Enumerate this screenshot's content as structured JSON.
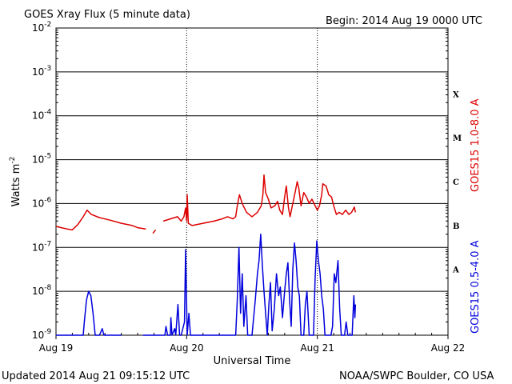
{
  "header": {
    "title": "GOES Xray Flux (5 minute data)",
    "begin": "Begin:  2014 Aug 19 0000 UTC"
  },
  "footer": {
    "updated": "Updated 2014 Aug 21 09:15:12 UTC",
    "credit": "NOAA/SWPC Boulder, CO USA"
  },
  "chart_data": {
    "type": "line",
    "title": "GOES Xray Flux (5 minute data)",
    "xlabel": "Universal Time",
    "ylabel": "Watts m",
    "ylabel_sup": "-2",
    "yscale": "log",
    "ylim": [
      1e-09,
      0.01
    ],
    "xlim_hours": [
      0,
      72
    ],
    "x_ticks": [
      {
        "hour": 0,
        "label": "Aug 19"
      },
      {
        "hour": 24,
        "label": "Aug 20"
      },
      {
        "hour": 48,
        "label": "Aug 21"
      },
      {
        "hour": 72,
        "label": "Aug 22"
      }
    ],
    "y_ticks": [
      {
        "exp": -9,
        "label": "10",
        "sup": "-9"
      },
      {
        "exp": -8,
        "label": "10",
        "sup": "-8"
      },
      {
        "exp": -7,
        "label": "10",
        "sup": "-7"
      },
      {
        "exp": -6,
        "label": "10",
        "sup": "-6"
      },
      {
        "exp": -5,
        "label": "10",
        "sup": "-5"
      },
      {
        "exp": -4,
        "label": "10",
        "sup": "-4"
      },
      {
        "exp": -3,
        "label": "10",
        "sup": "-3"
      },
      {
        "exp": -2,
        "label": "10",
        "sup": "-2"
      }
    ],
    "flare_classes": [
      {
        "label": "X",
        "exp": -3.5
      },
      {
        "label": "M",
        "exp": -4.5
      },
      {
        "label": "C",
        "exp": -5.5
      },
      {
        "label": "B",
        "exp": -6.5
      },
      {
        "label": "A",
        "exp": -7.5
      }
    ],
    "grid": true,
    "series": [
      {
        "name": "GOES15 1.0-8.0 A",
        "color": "#dd0000",
        "points": [
          [
            0,
            -6.52
          ],
          [
            1,
            -6.55
          ],
          [
            2,
            -6.58
          ],
          [
            3,
            -6.6
          ],
          [
            4,
            -6.48
          ],
          [
            5,
            -6.3
          ],
          [
            5.7,
            -6.15
          ],
          [
            6.5,
            -6.25
          ],
          [
            8,
            -6.32
          ],
          [
            10,
            -6.38
          ],
          [
            12,
            -6.45
          ],
          [
            14,
            -6.5
          ],
          [
            15,
            -6.55
          ],
          [
            16.5,
            -6.58
          ],
          null,
          [
            17.8,
            -6.68
          ],
          [
            18.3,
            -6.6
          ],
          null,
          [
            19.7,
            -6.4
          ],
          [
            21,
            -6.35
          ],
          [
            22.3,
            -6.3
          ],
          [
            23,
            -6.4
          ],
          [
            23.5,
            -6.3
          ],
          [
            23.8,
            -6.1
          ],
          [
            24,
            -6.4
          ],
          [
            24.1,
            -5.8
          ],
          [
            24.3,
            -6.45
          ],
          [
            25,
            -6.5
          ],
          [
            27,
            -6.45
          ],
          [
            29,
            -6.4
          ],
          [
            30.5,
            -6.35
          ],
          [
            31.5,
            -6.3
          ],
          [
            32.5,
            -6.35
          ],
          [
            33,
            -6.3
          ],
          [
            33.3,
            -6.05
          ],
          [
            33.7,
            -5.8
          ],
          [
            34.2,
            -6.0
          ],
          [
            35,
            -6.2
          ],
          [
            36,
            -6.3
          ],
          [
            37,
            -6.2
          ],
          [
            37.7,
            -6.05
          ],
          [
            38,
            -5.8
          ],
          [
            38.2,
            -5.35
          ],
          [
            38.5,
            -5.75
          ],
          [
            39,
            -5.9
          ],
          [
            39.5,
            -6.1
          ],
          [
            40.2,
            -6.05
          ],
          [
            40.7,
            -5.95
          ],
          [
            41.1,
            -6.15
          ],
          [
            41.6,
            -6.25
          ],
          [
            42,
            -5.85
          ],
          [
            42.3,
            -5.6
          ],
          [
            42.7,
            -6.1
          ],
          [
            43,
            -6.3
          ],
          [
            43.5,
            -6.0
          ],
          [
            44,
            -5.7
          ],
          [
            44.3,
            -5.5
          ],
          [
            44.6,
            -5.65
          ],
          [
            45,
            -6.05
          ],
          [
            45.5,
            -5.75
          ],
          [
            46,
            -5.85
          ],
          [
            46.5,
            -6.0
          ],
          [
            47,
            -5.9
          ],
          [
            47.6,
            -6.05
          ],
          [
            48,
            -6.15
          ],
          [
            48.4,
            -6.05
          ],
          [
            48.8,
            -5.8
          ],
          [
            49,
            -5.55
          ],
          [
            49.6,
            -5.6
          ],
          [
            50.1,
            -5.8
          ],
          [
            50.6,
            -5.85
          ],
          [
            51,
            -6.05
          ],
          [
            51.5,
            -6.25
          ],
          [
            52,
            -6.2
          ],
          [
            52.6,
            -6.25
          ],
          [
            53.2,
            -6.15
          ],
          [
            53.8,
            -6.25
          ],
          [
            54.3,
            -6.2
          ],
          [
            54.8,
            -6.08
          ],
          [
            55,
            -6.2
          ]
        ]
      },
      {
        "name": "GOES15 0.5-4.0 A",
        "color": "#0000dd",
        "points": [
          [
            0,
            -9.0
          ],
          [
            5,
            -9.0
          ],
          [
            5.2,
            -8.7
          ],
          [
            5.6,
            -8.2
          ],
          [
            6,
            -8.0
          ],
          [
            6.4,
            -8.1
          ],
          [
            6.8,
            -8.5
          ],
          [
            7.2,
            -9.0
          ],
          [
            8,
            -9.0
          ],
          [
            8.5,
            -8.85
          ],
          [
            8.8,
            -9.0
          ],
          [
            12,
            -9.0
          ],
          null,
          [
            16,
            -9.0
          ],
          [
            20,
            -9.0
          ],
          [
            20.2,
            -8.8
          ],
          [
            20.5,
            -9.0
          ],
          [
            21,
            -9.0
          ],
          [
            21.1,
            -8.6
          ],
          [
            21.3,
            -9.0
          ],
          [
            21.8,
            -8.85
          ],
          [
            22,
            -9.0
          ],
          [
            22.4,
            -8.3
          ],
          [
            22.7,
            -9.0
          ],
          [
            23,
            -9.0
          ],
          [
            23.6,
            -8.7
          ],
          [
            23.8,
            -7.05
          ],
          [
            24.1,
            -9.0
          ],
          [
            24.4,
            -8.5
          ],
          [
            24.7,
            -9.0
          ],
          [
            26,
            -9.0
          ],
          [
            33,
            -9.0
          ],
          [
            33.3,
            -8.2
          ],
          [
            33.6,
            -7.0
          ],
          [
            33.9,
            -8.5
          ],
          [
            34.2,
            -7.6
          ],
          [
            34.5,
            -8.8
          ],
          [
            34.9,
            -8.1
          ],
          [
            35.2,
            -9.0
          ],
          [
            36,
            -9.0
          ],
          [
            36.6,
            -8.2
          ],
          [
            37,
            -7.6
          ],
          [
            37.3,
            -7.3
          ],
          [
            37.6,
            -6.7
          ],
          [
            37.9,
            -7.4
          ],
          [
            38.2,
            -8.0
          ],
          [
            38.5,
            -8.5
          ],
          [
            38.8,
            -9.0
          ],
          [
            39.1,
            -8.3
          ],
          [
            39.4,
            -7.8
          ],
          [
            39.7,
            -8.9
          ],
          [
            40.1,
            -8.4
          ],
          [
            40.5,
            -7.6
          ],
          [
            40.9,
            -8.1
          ],
          [
            41.2,
            -7.9
          ],
          [
            41.6,
            -8.6
          ],
          [
            42,
            -8.0
          ],
          [
            42.3,
            -7.6
          ],
          [
            42.6,
            -7.35
          ],
          [
            42.9,
            -8.2
          ],
          [
            43.2,
            -8.8
          ],
          [
            43.5,
            -7.5
          ],
          [
            43.8,
            -6.9
          ],
          [
            44.1,
            -7.3
          ],
          [
            44.4,
            -7.9
          ],
          [
            44.7,
            -8.1
          ],
          [
            45,
            -9.0
          ],
          [
            45.5,
            -9.0
          ],
          [
            45.8,
            -8.3
          ],
          [
            46.1,
            -8.0
          ],
          [
            46.5,
            -9.0
          ],
          [
            47.3,
            -9.0
          ],
          [
            47.6,
            -7.7
          ],
          [
            47.9,
            -6.85
          ],
          [
            48.2,
            -7.3
          ],
          [
            48.5,
            -7.6
          ],
          [
            48.8,
            -8.1
          ],
          [
            49.1,
            -8.4
          ],
          [
            49.4,
            -9.0
          ],
          [
            50.5,
            -9.0
          ],
          [
            50.8,
            -8.8
          ],
          [
            51.1,
            -7.6
          ],
          [
            51.4,
            -7.8
          ],
          [
            51.8,
            -7.3
          ],
          [
            52.1,
            -8.4
          ],
          [
            52.4,
            -9.0
          ],
          [
            53,
            -9.0
          ],
          [
            53.3,
            -8.7
          ],
          [
            53.6,
            -9.0
          ],
          [
            54.4,
            -9.0
          ],
          [
            54.7,
            -8.1
          ],
          [
            54.9,
            -8.6
          ],
          [
            55,
            -8.3
          ]
        ]
      }
    ]
  }
}
